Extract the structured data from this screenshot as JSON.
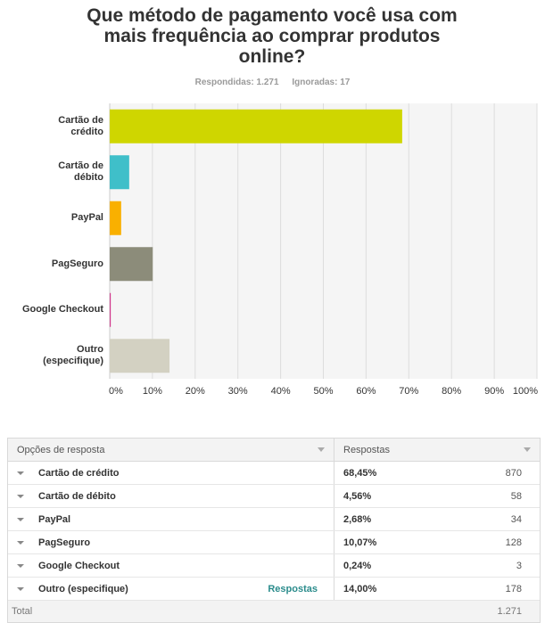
{
  "question": {
    "title_lines": [
      "Que método de pagamento você usa com",
      "mais frequência ao comprar produtos",
      "online?"
    ]
  },
  "stats": {
    "answered": "Respondidas: 1.271",
    "skipped": "Ignoradas: 17"
  },
  "chart_data": {
    "type": "bar",
    "orientation": "horizontal",
    "categories": [
      [
        "Cartão de",
        "crédito"
      ],
      [
        "Cartão de",
        "débito"
      ],
      [
        "PayPal"
      ],
      [
        "PagSeguro"
      ],
      [
        "Google Checkout"
      ],
      [
        "Outro",
        "(especifique)"
      ]
    ],
    "values": [
      68.45,
      4.56,
      2.68,
      10.07,
      0.24,
      14.0
    ],
    "colors": [
      "#cfd600",
      "#3fbfc9",
      "#f9b000",
      "#8c8c7a",
      "#d0368b",
      "#d3d1c2"
    ],
    "xlim": [
      0,
      100
    ],
    "ticks": [
      "0%",
      "10%",
      "20%",
      "30%",
      "40%",
      "50%",
      "60%",
      "70%",
      "80%",
      "90%",
      "100%"
    ],
    "grid": true
  },
  "table": {
    "header_options": "Opções de resposta",
    "header_responses": "Respostas",
    "rows": [
      {
        "name": "Cartão de crédito",
        "pct": "68,45%",
        "count": "870",
        "link": ""
      },
      {
        "name": "Cartão de débito",
        "pct": "4,56%",
        "count": "58",
        "link": ""
      },
      {
        "name": "PayPal",
        "pct": "2,68%",
        "count": "34",
        "link": ""
      },
      {
        "name": "PagSeguro",
        "pct": "10,07%",
        "count": "128",
        "link": ""
      },
      {
        "name": "Google Checkout",
        "pct": "0,24%",
        "count": "3",
        "link": ""
      },
      {
        "name": "Outro (especifique)",
        "pct": "14,00%",
        "count": "178",
        "link": "Respostas"
      }
    ],
    "total_label": "Total",
    "total_count": "1.271"
  }
}
